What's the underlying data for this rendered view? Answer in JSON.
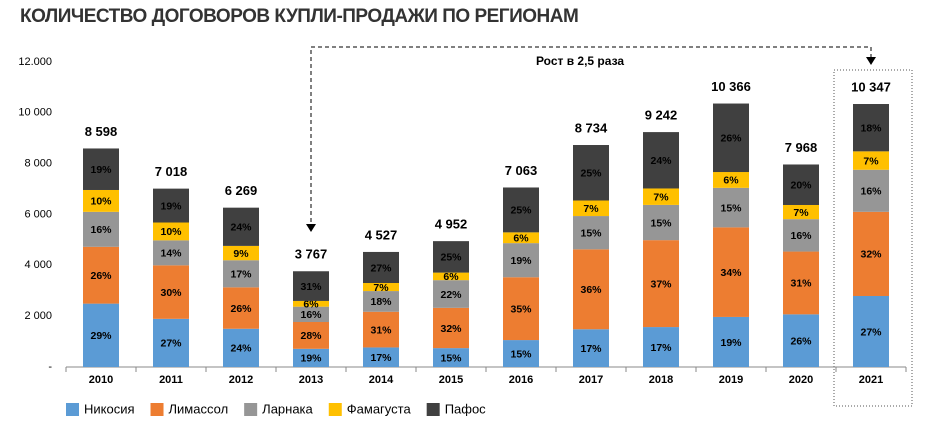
{
  "chart_data": {
    "type": "stacked-bar-percent",
    "title": "КОЛИЧЕСТВО ДОГОВОРОВ КУПЛИ-ПРОДАЖИ ПО РЕГИОНАМ",
    "annotation": "Рост в 2,5 раза",
    "categories": [
      "2010",
      "2011",
      "2012",
      "2013",
      "2014",
      "2015",
      "2016",
      "2017",
      "2018",
      "2019",
      "2020",
      "2021"
    ],
    "totals": {
      "values": [
        8598,
        7018,
        6269,
        3767,
        4527,
        4952,
        7063,
        8734,
        9242,
        10366,
        7968,
        10347
      ],
      "value_labels": [
        "8 598",
        "7 018",
        "6 269",
        "3 767",
        "4 527",
        "4 952",
        "7 063",
        "8 734",
        "9 242",
        "10 366",
        "7 968",
        "10 347"
      ]
    },
    "series": [
      {
        "name": "Никосия",
        "color": "#5b9bd5",
        "values": [
          29,
          27,
          24,
          19,
          17,
          15,
          15,
          17,
          17,
          19,
          26,
          27
        ],
        "value_labels": [
          "29%",
          "27%",
          "24%",
          "19%",
          "17%",
          "15%",
          "15%",
          "17%",
          "17%",
          "19%",
          "26%",
          "27%"
        ]
      },
      {
        "name": "Лимассол",
        "color": "#ed7d31",
        "values": [
          26,
          30,
          26,
          28,
          31,
          32,
          35,
          36,
          37,
          34,
          31,
          32
        ],
        "value_labels": [
          "26%",
          "30%",
          "26%",
          "28%",
          "31%",
          "32%",
          "35%",
          "36%",
          "37%",
          "34%",
          "31%",
          "32%"
        ]
      },
      {
        "name": "Ларнака",
        "color": "#969696",
        "values": [
          16,
          14,
          17,
          16,
          18,
          22,
          19,
          15,
          15,
          15,
          16,
          16
        ],
        "value_labels": [
          "16%",
          "14%",
          "17%",
          "16%",
          "18%",
          "22%",
          "19%",
          "15%",
          "15%",
          "15%",
          "16%",
          "16%"
        ]
      },
      {
        "name": "Фамагуста",
        "color": "#ffc000",
        "values": [
          10,
          10,
          9,
          6,
          7,
          6,
          6,
          7,
          7,
          6,
          7,
          7
        ],
        "value_labels": [
          "10%",
          "10%",
          "9%",
          "6%",
          "7%",
          "6%",
          "6%",
          "7%",
          "7%",
          "6%",
          "7%",
          "7%"
        ]
      },
      {
        "name": "Пафос",
        "color": "#404040",
        "values": [
          19,
          19,
          24,
          31,
          27,
          25,
          25,
          25,
          24,
          26,
          20,
          18
        ],
        "value_labels": [
          "19%",
          "19%",
          "24%",
          "31%",
          "27%",
          "25%",
          "25%",
          "25%",
          "24%",
          "26%",
          "20%",
          "18%"
        ]
      }
    ],
    "ylim": [
      0,
      12000
    ],
    "yticks": [
      {
        "value": 0,
        "label": "-"
      },
      {
        "value": 2000,
        "label": "2 000"
      },
      {
        "value": 4000,
        "label": "4 000"
      },
      {
        "value": 6000,
        "label": "6 000"
      },
      {
        "value": 8000,
        "label": "8 000"
      },
      {
        "value": 10000,
        "label": "10 000"
      },
      {
        "value": 12000,
        "label": "12.000"
      }
    ],
    "grid": false
  }
}
